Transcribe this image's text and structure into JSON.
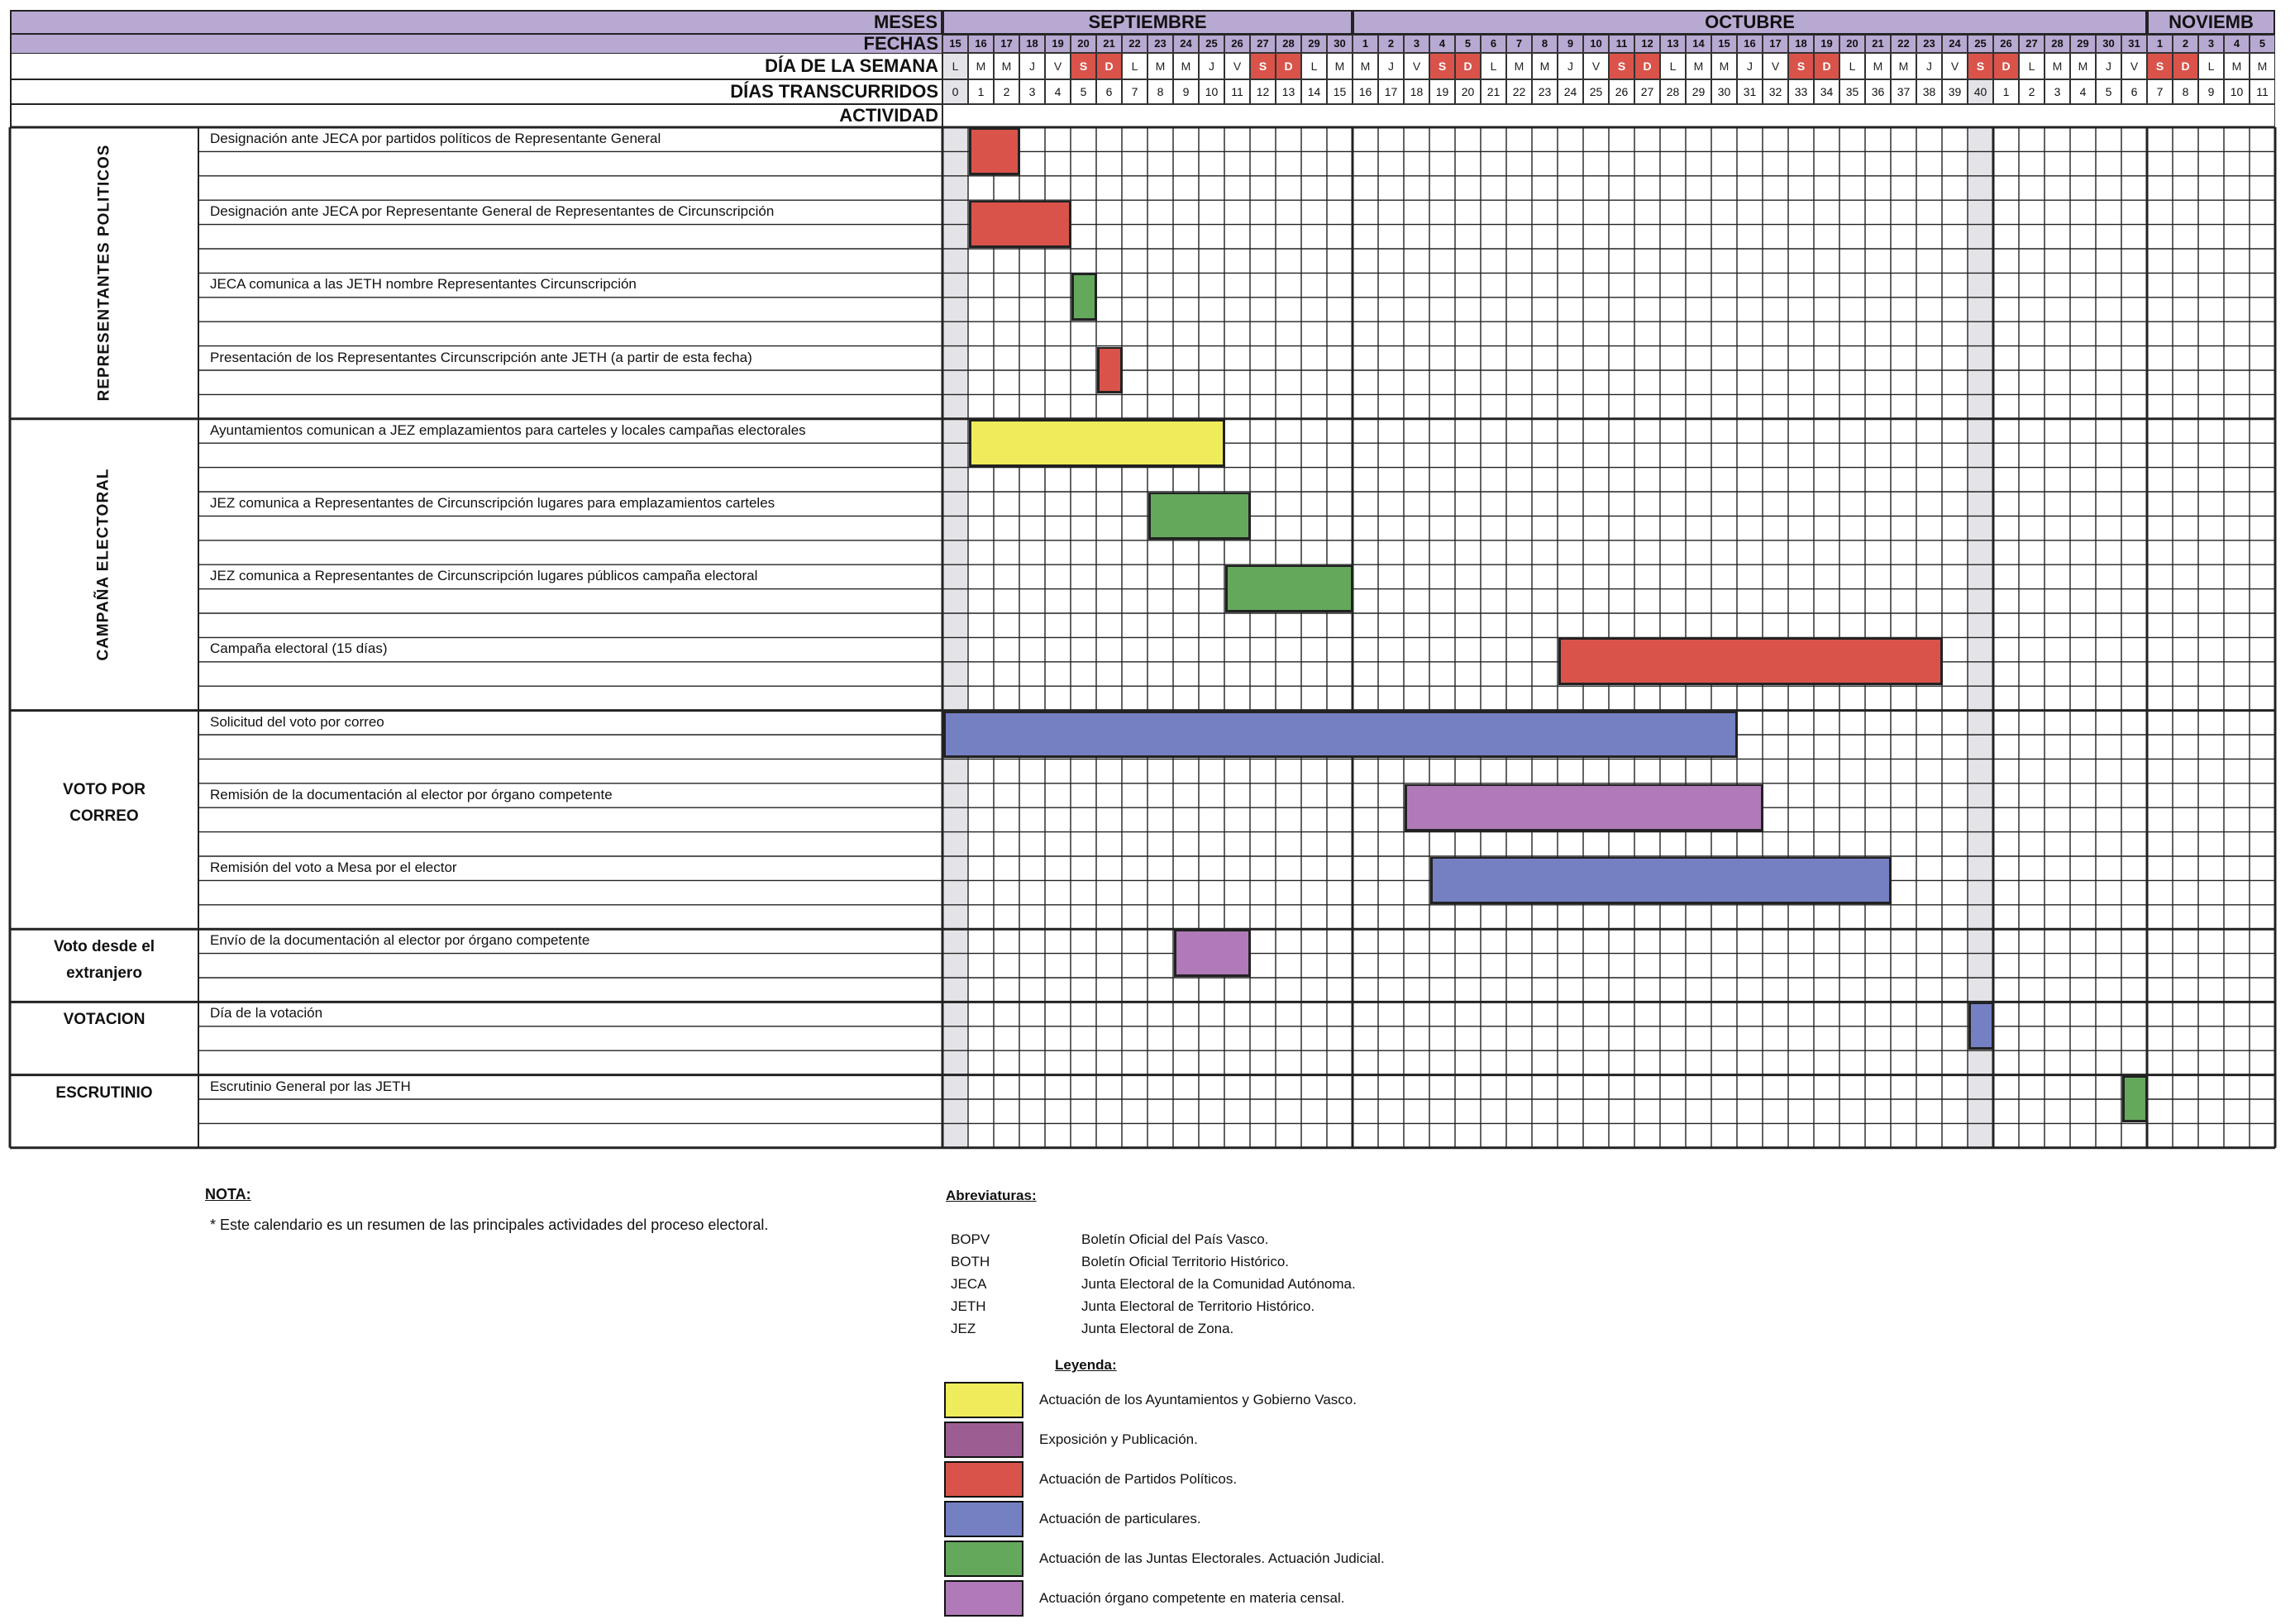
{
  "header": {
    "months_label": "MESES",
    "dates_label": "FECHAS",
    "weekday_label": "DÍA DE LA SEMANA",
    "elapsed_label": "DÍAS TRANSCURRIDOS",
    "activity_label": "ACTIVIDAD",
    "months": [
      {
        "name": "SEPTIEMBRE",
        "start": 0,
        "days": 16
      },
      {
        "name": "OCTUBRE",
        "start": 16,
        "days": 31
      },
      {
        "name": "NOVIEMB",
        "start": 47,
        "days": 5
      }
    ],
    "dates": [
      "15",
      "16",
      "17",
      "18",
      "19",
      "20",
      "21",
      "22",
      "23",
      "24",
      "25",
      "26",
      "27",
      "28",
      "29",
      "30",
      "1",
      "2",
      "3",
      "4",
      "5",
      "6",
      "7",
      "8",
      "9",
      "10",
      "11",
      "12",
      "13",
      "14",
      "15",
      "16",
      "17",
      "18",
      "19",
      "20",
      "21",
      "22",
      "23",
      "24",
      "25",
      "26",
      "27",
      "28",
      "29",
      "30",
      "31",
      "1",
      "2",
      "3",
      "4",
      "5"
    ],
    "weekdays": [
      "L",
      "M",
      "M",
      "J",
      "V",
      "S",
      "D",
      "L",
      "M",
      "M",
      "J",
      "V",
      "S",
      "D",
      "L",
      "M",
      "M",
      "J",
      "V",
      "S",
      "D",
      "L",
      "M",
      "M",
      "J",
      "V",
      "S",
      "D",
      "L",
      "M",
      "M",
      "J",
      "V",
      "S",
      "D",
      "L",
      "M",
      "M",
      "J",
      "V",
      "S",
      "D",
      "L",
      "M",
      "M",
      "J",
      "V",
      "S",
      "D",
      "L",
      "M",
      "M"
    ],
    "elapsed": [
      "0",
      "1",
      "2",
      "3",
      "4",
      "5",
      "6",
      "7",
      "8",
      "9",
      "10",
      "11",
      "12",
      "13",
      "14",
      "15",
      "16",
      "17",
      "18",
      "19",
      "20",
      "21",
      "22",
      "23",
      "24",
      "25",
      "26",
      "27",
      "28",
      "29",
      "30",
      "31",
      "32",
      "33",
      "34",
      "35",
      "36",
      "37",
      "38",
      "39",
      "40",
      "1",
      "2",
      "3",
      "4",
      "5",
      "6",
      "7",
      "8",
      "9",
      "10",
      "11"
    ]
  },
  "colors": {
    "header_purple": "#b8a9d2",
    "weekend_red": "#d9534a",
    "shaded_col": "#e4e4e8",
    "yellow": "#eeec5a",
    "exposition": "#9c5e92",
    "red": "#d9534a",
    "blue": "#7480c2",
    "green": "#64a85c",
    "census": "#b07ab8"
  },
  "sections": [
    {
      "title": "REPRESENTANTES POLITICOS",
      "vertical": true,
      "rows": 12
    },
    {
      "title": "CAMPAÑA ELECTORAL",
      "vertical": true,
      "rows": 12
    },
    {
      "title": "VOTO POR CORREO",
      "vertical": false,
      "rows": 9
    },
    {
      "title": "Voto desde el extranjero",
      "vertical": false,
      "rows": 3
    },
    {
      "title": "VOTACION",
      "vertical": false,
      "rows": 3
    },
    {
      "title": "ESCRUTINIO",
      "vertical": false,
      "rows": 3
    }
  ],
  "activities": [
    {
      "label": "Designación ante JECA por partidos políticos de Representante General",
      "row": 0,
      "start": 1,
      "end": 2,
      "color": "red"
    },
    {
      "label": "Designación ante JECA por Representante General de Representantes de Circunscripción",
      "row": 3,
      "start": 1,
      "end": 4,
      "color": "red"
    },
    {
      "label": "JECA comunica a las JETH nombre Representantes Circunscripción",
      "row": 6,
      "start": 5,
      "end": 5,
      "color": "green"
    },
    {
      "label": "Presentación de los Representantes Circunscripción ante JETH (a partir de esta fecha)",
      "row": 9,
      "start": 6,
      "end": 6,
      "color": "red"
    },
    {
      "label": "Ayuntamientos comunican a JEZ emplazamientos para carteles y locales campañas electorales",
      "row": 12,
      "start": 1,
      "end": 10,
      "color": "yellow"
    },
    {
      "label": "JEZ comunica a Representantes de Circunscripción lugares para emplazamientos carteles",
      "row": 15,
      "start": 8,
      "end": 11,
      "color": "green"
    },
    {
      "label": "JEZ comunica a Representantes de Circunscripción lugares públicos campaña electoral",
      "row": 18,
      "start": 11,
      "end": 15,
      "color": "green"
    },
    {
      "label": "Campaña electoral (15 días)",
      "row": 21,
      "start": 24,
      "end": 38,
      "color": "red"
    },
    {
      "label": "Solicitud del voto por correo",
      "row": 24,
      "start": 0,
      "end": 30,
      "color": "blue"
    },
    {
      "label": "Remisión de la documentación al elector por órgano competente",
      "row": 27,
      "start": 18,
      "end": 31,
      "color": "census"
    },
    {
      "label": "Remisión del voto a Mesa por el elector",
      "row": 30,
      "start": 19,
      "end": 36,
      "color": "blue"
    },
    {
      "label": "Envío de la documentación al elector por órgano competente",
      "row": 33,
      "start": 9,
      "end": 11,
      "color": "census"
    },
    {
      "label": "Día de la votación",
      "row": 36,
      "start": 40,
      "end": 40,
      "color": "blue"
    },
    {
      "label": "Escrutinio General por las JETH",
      "row": 39,
      "start": 46,
      "end": 46,
      "color": "green"
    }
  ],
  "notes": {
    "title": "NOTA",
    "text": "* Este calendario es un resumen de las principales actividades del proceso electoral."
  },
  "abbreviations": {
    "title": "Abreviaturas",
    "items": [
      {
        "code": "BOPV",
        "meaning": "Boletín Oficial del País Vasco."
      },
      {
        "code": "BOTH",
        "meaning": "Boletín Oficial Territorio Histórico."
      },
      {
        "code": "JECA",
        "meaning": "Junta Electoral de la Comunidad Autónoma."
      },
      {
        "code": "JETH",
        "meaning": "Junta Electoral de Territorio Histórico."
      },
      {
        "code": "JEZ",
        "meaning": "Junta Electoral de Zona."
      }
    ]
  },
  "legend": {
    "title": "Leyenda",
    "items": [
      {
        "color": "yellow",
        "label": "Actuación de los Ayuntamientos y Gobierno Vasco."
      },
      {
        "color": "exposition",
        "label": "Exposición y Publicación."
      },
      {
        "color": "red",
        "label": "Actuación de Partidos Políticos."
      },
      {
        "color": "blue",
        "label": "Actuación de particulares."
      },
      {
        "color": "green",
        "label": "Actuación de las Juntas Electorales. Actuación Judicial."
      },
      {
        "color": "census",
        "label": "Actuación órgano competente en materia censal."
      }
    ]
  }
}
